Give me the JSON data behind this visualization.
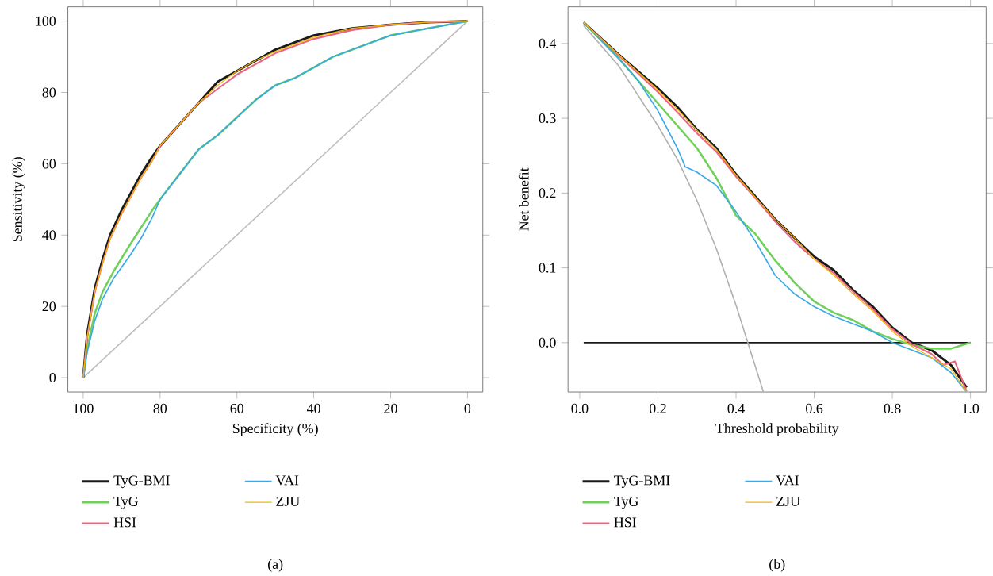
{
  "chart_data": [
    {
      "type": "line",
      "xlabel": "Specificity (%)",
      "ylabel": "Sensitivity (%)",
      "xlim": [
        104,
        -4
      ],
      "ylim": [
        -4,
        104
      ],
      "xticks": [
        100,
        80,
        60,
        40,
        20,
        0
      ],
      "yticks": [
        0,
        20,
        40,
        60,
        80,
        100
      ],
      "legend": "bottom",
      "annotations": [
        "(a)"
      ],
      "series": [
        {
          "color": "#bdbdbd",
          "x": [
            100,
            0
          ],
          "values": [
            0,
            100
          ]
        },
        {
          "name": "TyG-BMI",
          "color": "#1a1a1a",
          "x": [
            100,
            99,
            97,
            95,
            93,
            90,
            87,
            85,
            82,
            80,
            75,
            70,
            65,
            60,
            55,
            50,
            45,
            40,
            30,
            20,
            10,
            0
          ],
          "values": [
            0,
            12,
            25,
            33,
            40,
            47,
            53,
            57,
            62,
            65,
            71,
            77,
            83,
            86,
            89,
            92,
            94,
            96,
            98,
            99,
            99.7,
            100
          ]
        },
        {
          "name": "TyG",
          "color": "#6fd15a",
          "x": [
            100,
            99,
            97,
            95,
            92,
            88,
            85,
            82,
            80,
            75,
            70,
            65,
            60,
            55,
            50,
            45,
            40,
            35,
            30,
            25,
            20,
            10,
            0
          ],
          "values": [
            0,
            8,
            18,
            24,
            30,
            37,
            42,
            47,
            50,
            57,
            64,
            68,
            73,
            78,
            82,
            84,
            87,
            90,
            92,
            94,
            96,
            98,
            100
          ]
        },
        {
          "name": "HSI",
          "color": "#e8667f",
          "x": [
            100,
            99,
            97,
            95,
            93,
            90,
            87,
            85,
            82,
            80,
            75,
            70,
            65,
            60,
            55,
            50,
            45,
            40,
            30,
            20,
            10,
            0
          ],
          "values": [
            0,
            11,
            24,
            32,
            39,
            46,
            52,
            56,
            61,
            65,
            71,
            77,
            81,
            85,
            88,
            91,
            93,
            95,
            97.5,
            99,
            99.7,
            100
          ]
        },
        {
          "name": "VAI",
          "color": "#3aa9e6",
          "x": [
            100,
            99,
            97,
            95,
            92,
            88,
            85,
            82,
            80,
            75,
            70,
            65,
            60,
            55,
            50,
            45,
            40,
            35,
            30,
            25,
            20,
            10,
            0
          ],
          "values": [
            0,
            7,
            16,
            22,
            28,
            34,
            39,
            45,
            50,
            57,
            64,
            68,
            73,
            78,
            82,
            84,
            87,
            90,
            92,
            94,
            96,
            98,
            100
          ]
        },
        {
          "name": "ZJU",
          "color": "#f2b705",
          "x": [
            100,
            99,
            97,
            95,
            93,
            90,
            87,
            85,
            82,
            80,
            75,
            70,
            65,
            60,
            55,
            50,
            45,
            40,
            30,
            20,
            10,
            0
          ],
          "values": [
            0,
            11,
            24,
            32,
            39,
            46,
            52,
            56,
            61,
            65,
            71,
            77,
            82,
            86,
            89,
            91.5,
            93.5,
            95.5,
            98,
            99,
            99.7,
            100
          ]
        }
      ]
    },
    {
      "type": "line",
      "xlabel": "Threshold probability",
      "ylabel": "Net benefit",
      "xlim": [
        -0.03,
        1.04
      ],
      "ylim": [
        -0.066,
        0.449
      ],
      "xticks": [
        {
          "value": 0,
          "label": "0.0"
        },
        {
          "value": 0.2,
          "label": "0.2"
        },
        {
          "value": 0.4,
          "label": "0.4"
        },
        {
          "value": 0.6,
          "label": "0.6"
        },
        {
          "value": 0.8,
          "label": "0.8"
        },
        {
          "value": 1,
          "label": "1.0"
        }
      ],
      "yticks": [
        {
          "value": 0,
          "label": "0.0"
        },
        {
          "value": 0.1,
          "label": "0.1"
        },
        {
          "value": 0.2,
          "label": "0.2"
        },
        {
          "value": 0.3,
          "label": "0.3"
        },
        {
          "value": 0.4,
          "label": "0.4"
        }
      ],
      "legend": "bottom",
      "annotations": [
        "(b)"
      ],
      "series": [
        {
          "color": "#1a1a1a",
          "x": [
            0.01,
            1.0
          ],
          "values": [
            0,
            0
          ]
        },
        {
          "color": "#b0b0b0",
          "x": [
            0.01,
            0.1,
            0.2,
            0.25,
            0.3,
            0.35,
            0.4,
            0.43,
            0.47
          ],
          "values": [
            0.424,
            0.37,
            0.29,
            0.245,
            0.19,
            0.125,
            0.05,
            0.0,
            -0.066
          ]
        },
        {
          "name": "TyG-BMI",
          "color": "#1a1a1a",
          "x": [
            0.01,
            0.1,
            0.2,
            0.25,
            0.3,
            0.35,
            0.4,
            0.45,
            0.5,
            0.55,
            0.6,
            0.65,
            0.7,
            0.75,
            0.8,
            0.85,
            0.9,
            0.95,
            0.99
          ],
          "values": [
            0.428,
            0.385,
            0.34,
            0.315,
            0.285,
            0.26,
            0.225,
            0.195,
            0.165,
            0.14,
            0.115,
            0.097,
            0.07,
            0.048,
            0.02,
            0.0,
            -0.01,
            -0.03,
            -0.06
          ]
        },
        {
          "name": "TyG",
          "color": "#6fd15a",
          "x": [
            0.01,
            0.1,
            0.2,
            0.3,
            0.35,
            0.4,
            0.45,
            0.5,
            0.55,
            0.6,
            0.65,
            0.7,
            0.75,
            0.8,
            0.85,
            0.9,
            0.95,
            1.0
          ],
          "values": [
            0.428,
            0.38,
            0.32,
            0.26,
            0.22,
            0.17,
            0.145,
            0.11,
            0.08,
            0.055,
            0.04,
            0.03,
            0.015,
            0.005,
            -0.003,
            -0.008,
            -0.008,
            0.0
          ]
        },
        {
          "name": "HSI",
          "color": "#e8667f",
          "x": [
            0.01,
            0.1,
            0.2,
            0.25,
            0.3,
            0.35,
            0.4,
            0.45,
            0.5,
            0.55,
            0.6,
            0.65,
            0.7,
            0.75,
            0.8,
            0.85,
            0.9,
            0.93,
            0.96,
            0.99
          ],
          "values": [
            0.428,
            0.384,
            0.335,
            0.308,
            0.28,
            0.255,
            0.222,
            0.193,
            0.162,
            0.135,
            0.112,
            0.093,
            0.068,
            0.045,
            0.018,
            -0.002,
            -0.015,
            -0.03,
            -0.025,
            -0.065
          ]
        },
        {
          "name": "VAI",
          "color": "#3aa9e6",
          "x": [
            0.01,
            0.1,
            0.15,
            0.2,
            0.25,
            0.27,
            0.3,
            0.35,
            0.4,
            0.45,
            0.5,
            0.55,
            0.6,
            0.65,
            0.7,
            0.75,
            0.8,
            0.85,
            0.9,
            0.95,
            0.99
          ],
          "values": [
            0.428,
            0.38,
            0.35,
            0.31,
            0.26,
            0.235,
            0.228,
            0.21,
            0.175,
            0.135,
            0.09,
            0.065,
            0.048,
            0.035,
            0.025,
            0.015,
            0.0,
            -0.01,
            -0.02,
            -0.04,
            -0.066
          ]
        },
        {
          "name": "ZJU",
          "color": "#f2b705",
          "x": [
            0.01,
            0.1,
            0.2,
            0.25,
            0.3,
            0.35,
            0.4,
            0.45,
            0.5,
            0.55,
            0.6,
            0.65,
            0.7,
            0.75,
            0.8,
            0.85,
            0.9,
            0.95,
            0.99
          ],
          "values": [
            0.428,
            0.385,
            0.338,
            0.312,
            0.284,
            0.258,
            0.224,
            0.194,
            0.165,
            0.14,
            0.112,
            0.09,
            0.065,
            0.042,
            0.015,
            -0.005,
            -0.02,
            -0.035,
            -0.066
          ]
        }
      ]
    }
  ]
}
